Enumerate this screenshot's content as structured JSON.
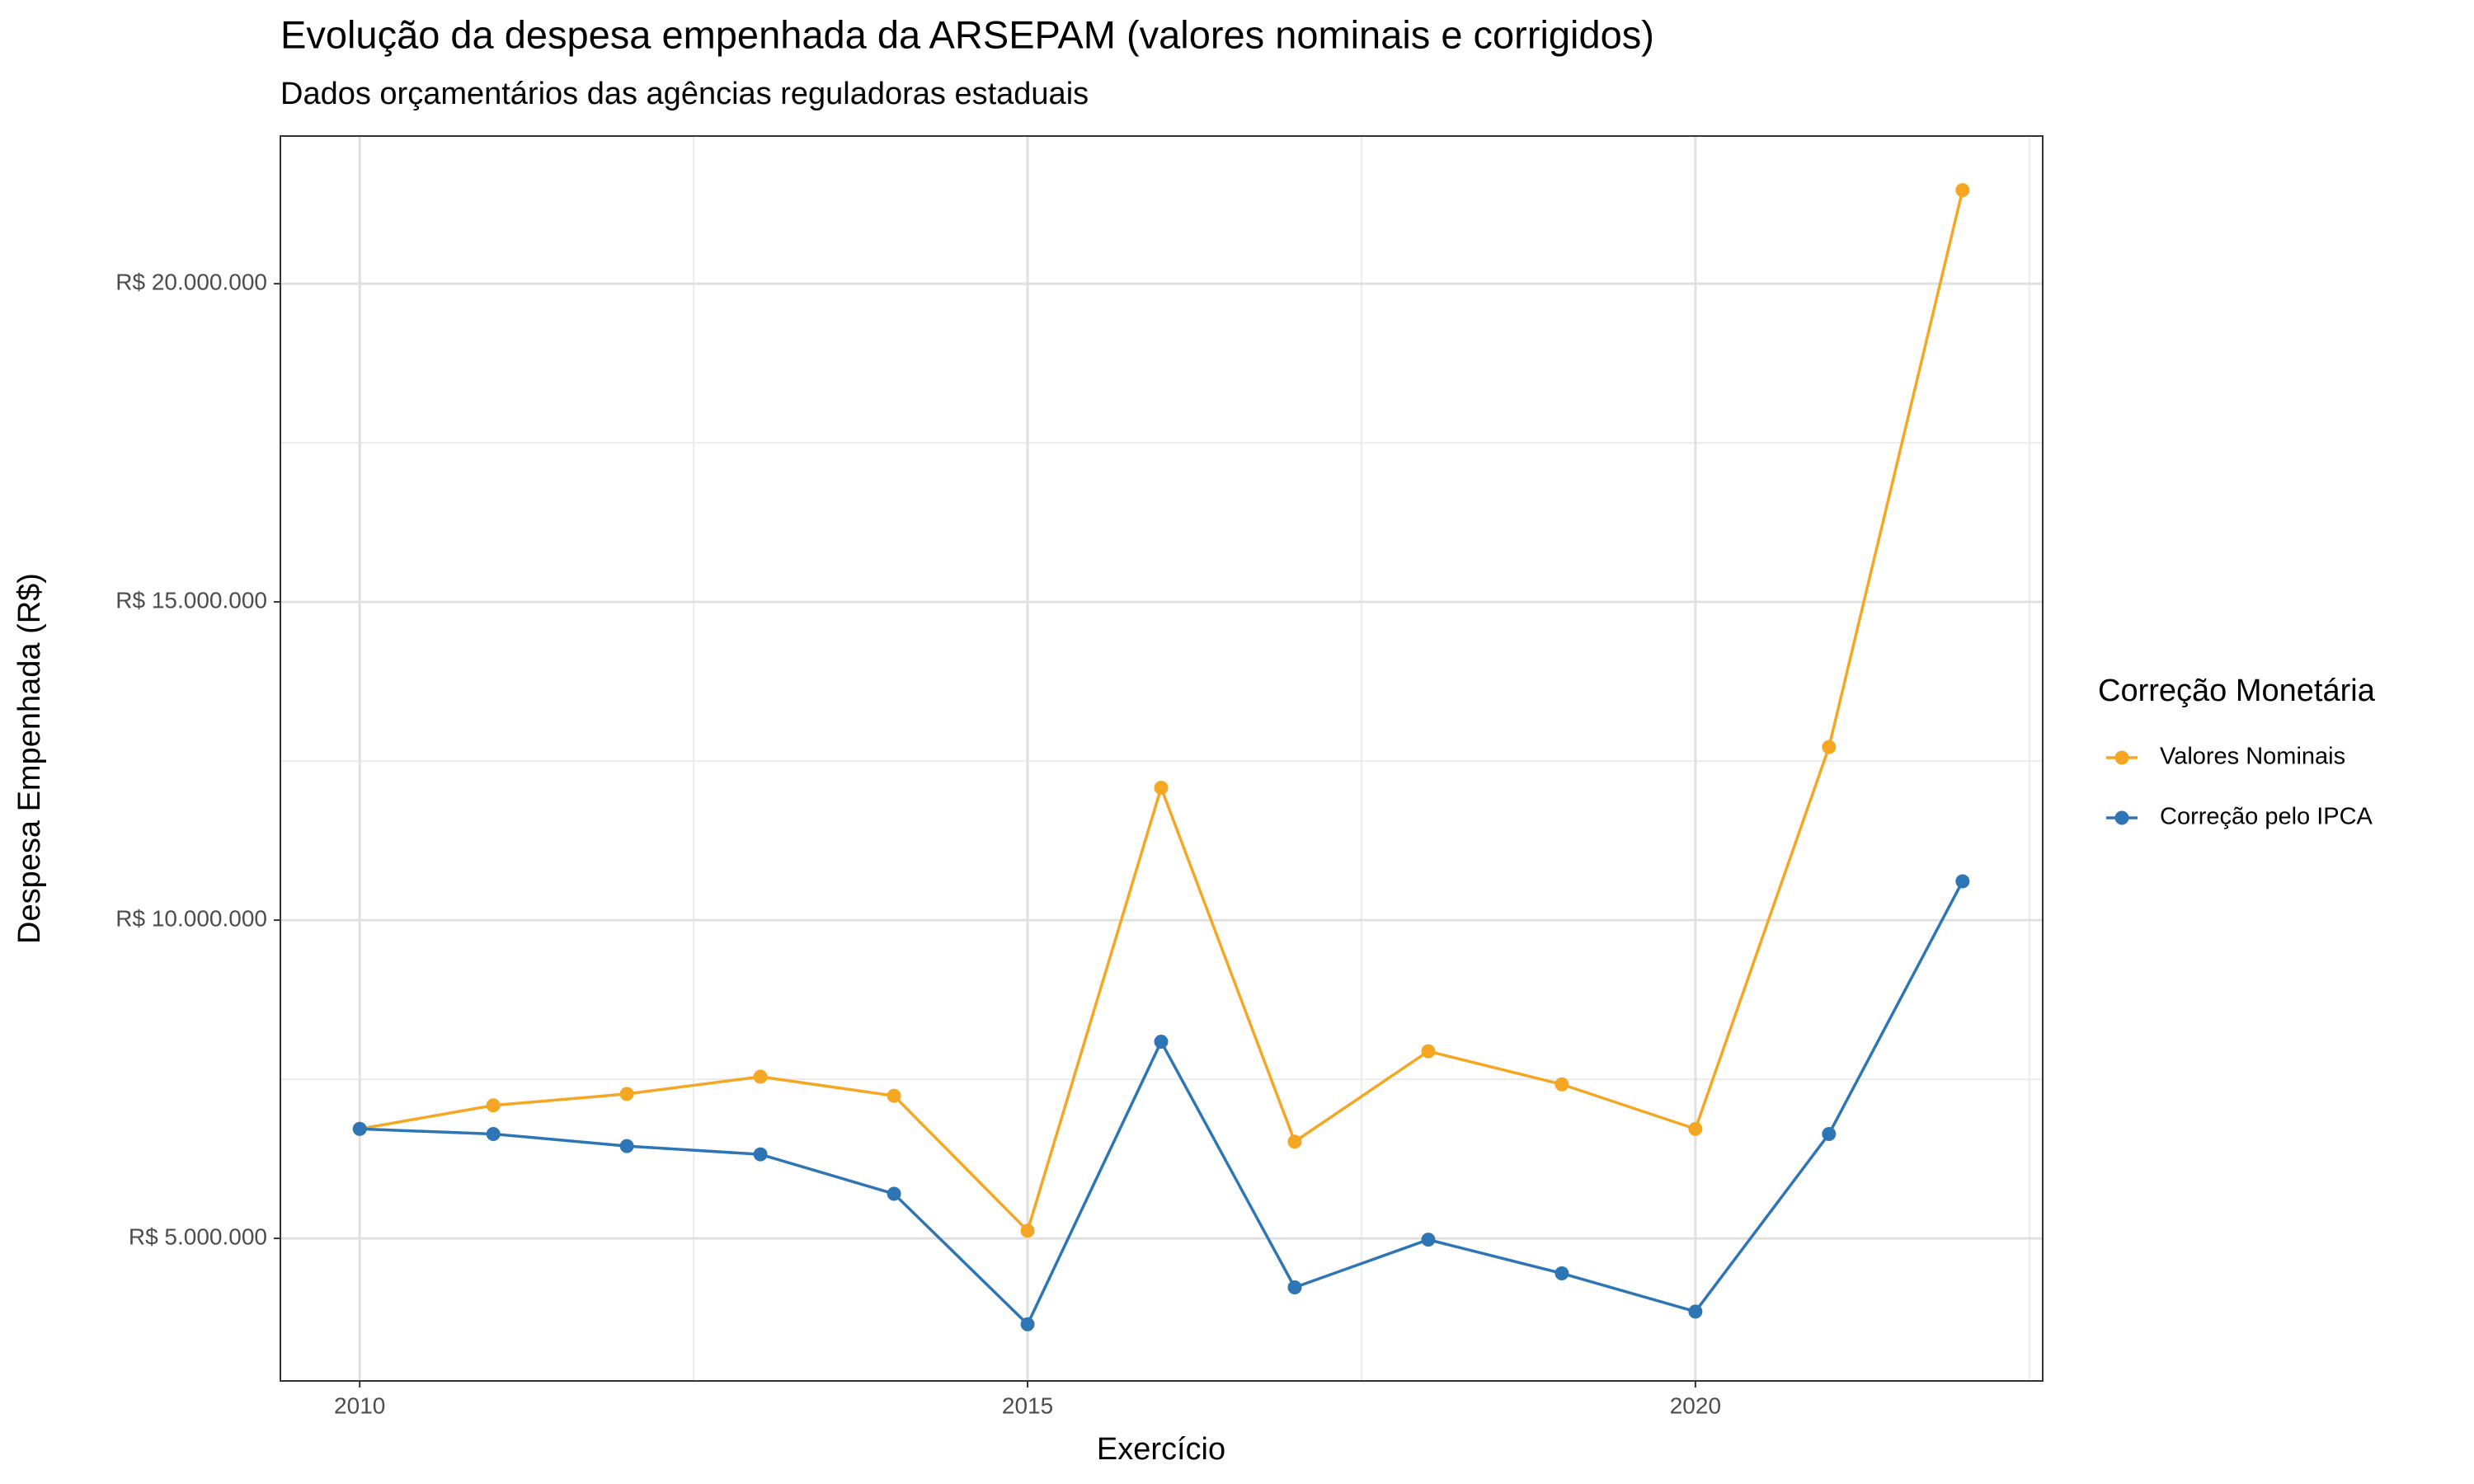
{
  "chart_data": {
    "type": "line",
    "title": "Evolução da despesa empenhada da ARSEPAM (valores nominais e corrigidos)",
    "subtitle": "Dados orçamentários das agências reguladoras estaduais",
    "x_label": "Exercício",
    "y_label": "Despesa Empenhada (R$)",
    "legend_title": "Correção Monetária",
    "legend_position": "right",
    "grid": true,
    "x": [
      2010,
      2011,
      2012,
      2013,
      2014,
      2015,
      2016,
      2017,
      2018,
      2019,
      2020,
      2021,
      2022
    ],
    "series": [
      {
        "name": "Valores Nominais",
        "color": "#F5A623",
        "values": [
          6720000,
          7090000,
          7270000,
          7540000,
          7240000,
          5120000,
          12080000,
          6520000,
          7940000,
          7420000,
          6720000,
          12720000,
          21470000
        ]
      },
      {
        "name": "Correção pelo IPCA",
        "color": "#2E75B6",
        "values": [
          6720000,
          6640000,
          6450000,
          6320000,
          5700000,
          3650000,
          8090000,
          4230000,
          4980000,
          4450000,
          3850000,
          6640000,
          10610000
        ]
      }
    ],
    "xlim": [
      2009.406,
      2022.6
    ],
    "xticks": [
      2010,
      2015,
      2020
    ],
    "xminor": [
      2012.5,
      2017.5,
      2022.5
    ],
    "ylim": [
      2760000,
      22320000
    ],
    "yticks": [
      {
        "value": 5000000,
        "label": "R$ 5.000.000"
      },
      {
        "value": 10000000,
        "label": "R$ 10.000.000"
      },
      {
        "value": 15000000,
        "label": "R$ 15.000.000"
      },
      {
        "value": 20000000,
        "label": "R$ 20.000.000"
      }
    ],
    "yminor": [
      7500000,
      12500000,
      17500000
    ]
  }
}
